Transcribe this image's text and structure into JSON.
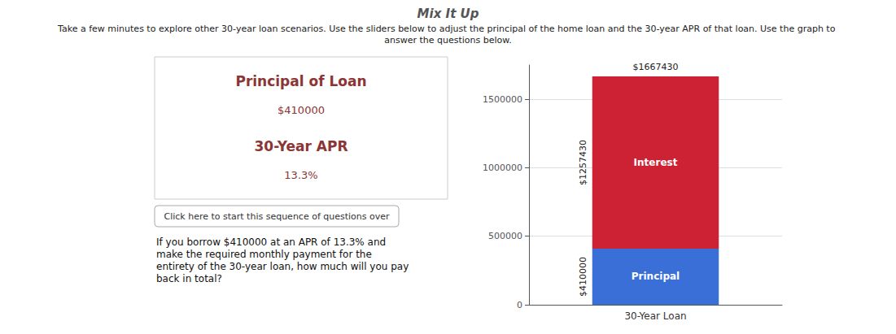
{
  "chart_data": {
    "type": "bar",
    "title": "Mix It Up",
    "subtitle": "Take a few minutes to explore other 30-year loan scenarios. Use the sliders below to adjust the principal of the home loan and the 30-year APR of that loan. Use the graph to answer the questions below.",
    "categories": [
      "30-Year Loan"
    ],
    "series": [
      {
        "name": "Principal",
        "color": "#3a6fd8",
        "values": [
          410000
        ],
        "value_labels": [
          "$410000"
        ]
      },
      {
        "name": "Interest",
        "color": "#cc2233",
        "values": [
          1257430
        ],
        "value_labels": [
          "$1257430"
        ]
      }
    ],
    "stacked": true,
    "data_labels": true,
    "ylim": [
      0,
      1750000
    ],
    "yticks": [
      0,
      500000,
      1000000,
      1500000
    ],
    "grid": true,
    "annotations": [
      {
        "text": "$1667430",
        "value": 1667430
      },
      {
        "text": "Principal of Loan"
      },
      {
        "text": "$410000"
      },
      {
        "text": "30-Year APR"
      },
      {
        "text": "13.3%"
      },
      {
        "text": "Click here to start this sequence of questions over"
      },
      {
        "text": "If you borrow $410000 at an APR of 13.3% and\nmake the required monthly payment for the\nentirety of the 30-year loan, how much will you pay\nback in total?"
      }
    ]
  }
}
